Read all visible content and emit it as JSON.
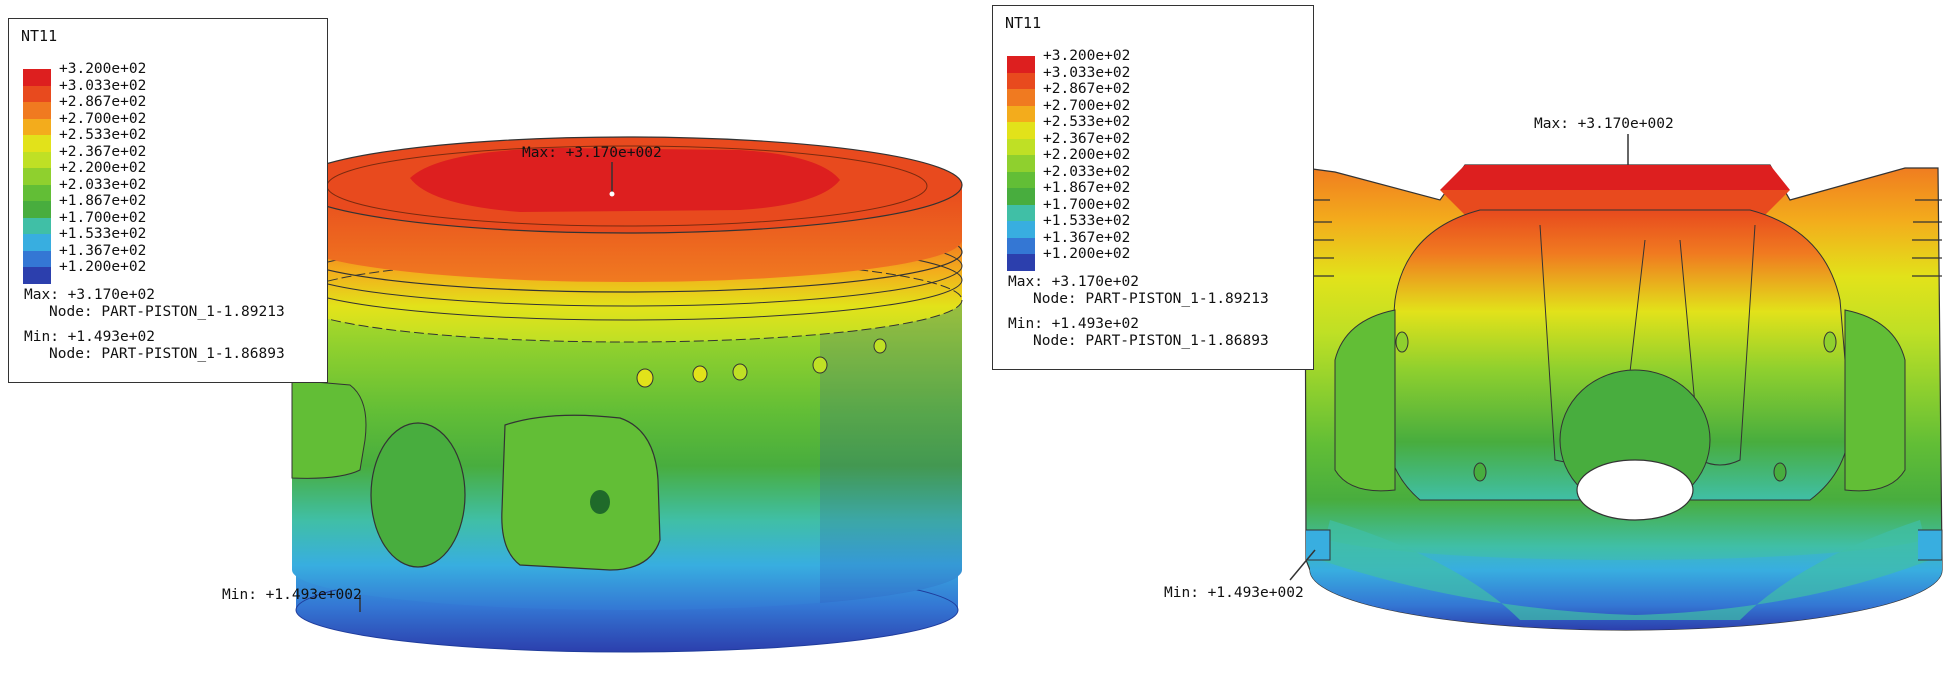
{
  "figure": {
    "panels": [
      {
        "name": "external-view",
        "legend": {
          "variable": "NT11",
          "colors": [
            "#dd1f1f",
            "#e84a1e",
            "#f07a20",
            "#f3ac1c",
            "#e2e21a",
            "#bfe025",
            "#8fd02e",
            "#62be36",
            "#48ad3e",
            "#40bfa6",
            "#38aee0",
            "#3477d4",
            "#2c3fad"
          ],
          "levels": [
            "+3.200e+02",
            "+3.033e+02",
            "+2.867e+02",
            "+2.700e+02",
            "+2.533e+02",
            "+2.367e+02",
            "+2.200e+02",
            "+2.033e+02",
            "+1.867e+02",
            "+1.700e+02",
            "+1.533e+02",
            "+1.367e+02",
            "+1.200e+02"
          ],
          "max_line": "Max: +3.170e+02",
          "max_node": "Node: PART-PISTON_1-1.89213",
          "min_line": "Min: +1.493e+02",
          "min_node": "Node: PART-PISTON_1-1.86893"
        },
        "max_annotation": "Max: +3.170e+002",
        "min_annotation": "Min: +1.493e+002"
      },
      {
        "name": "section-view",
        "legend": {
          "variable": "NT11",
          "colors": [
            "#dd1f1f",
            "#e84a1e",
            "#f07a20",
            "#f3ac1c",
            "#e2e21a",
            "#bfe025",
            "#8fd02e",
            "#62be36",
            "#48ad3e",
            "#40bfa6",
            "#38aee0",
            "#3477d4",
            "#2c3fad"
          ],
          "levels": [
            "+3.200e+02",
            "+3.033e+02",
            "+2.867e+02",
            "+2.700e+02",
            "+2.533e+02",
            "+2.367e+02",
            "+2.200e+02",
            "+2.033e+02",
            "+1.867e+02",
            "+1.700e+02",
            "+1.533e+02",
            "+1.367e+02",
            "+1.200e+02"
          ],
          "max_line": "Max: +3.170e+02",
          "max_node": "Node: PART-PISTON_1-1.89213",
          "min_line": "Min: +1.493e+02",
          "min_node": "Node: PART-PISTON_1-1.86893"
        },
        "max_annotation": "Max: +3.170e+002",
        "min_annotation": "Min: +1.493e+002"
      }
    ]
  }
}
